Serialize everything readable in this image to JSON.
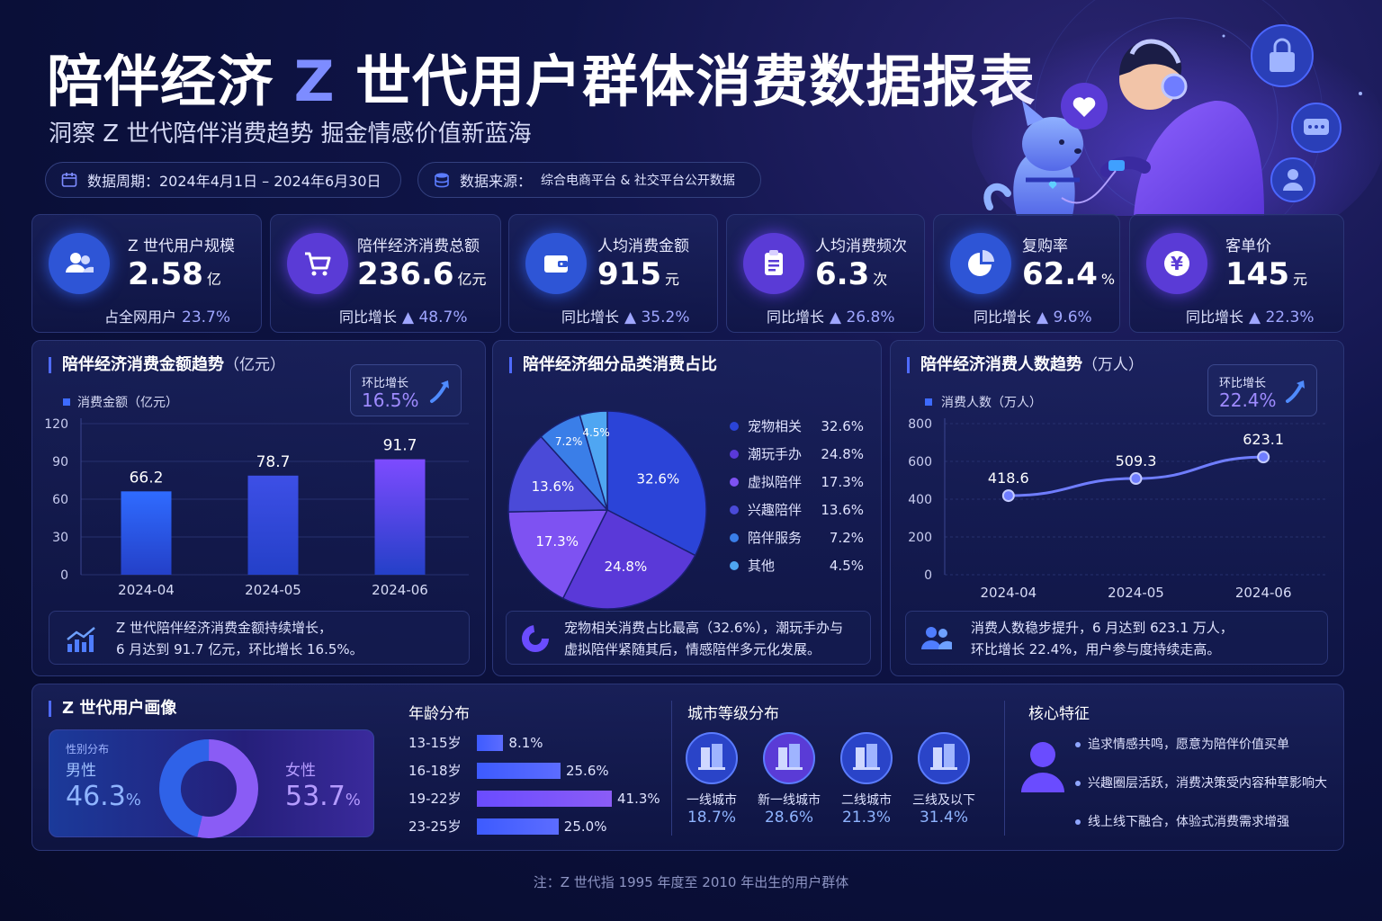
{
  "header": {
    "title_part1": "陪伴经济",
    "title_z": "Z",
    "title_part2": "世代用户群体消费数据报表",
    "subtitle": "洞察 Z 世代陪伴消费趋势   掘金情感价值新蓝海",
    "period": "数据周期：2024年4月1日 – 2024年6月30日",
    "source_label": "数据来源：",
    "source_value": "综合电商平台 & 社交平台公开数据"
  },
  "kpis": [
    {
      "label": "Z 世代用户规模",
      "value": "2.58",
      "unit": "亿",
      "sub_label": "占全网用户",
      "sub_value": "23.7%",
      "icon": "users-icon",
      "color": "#2e55d6"
    },
    {
      "label": "陪伴经济消费总额",
      "value": "236.6",
      "unit": "亿元",
      "sub_label": "同比增长",
      "sub_value": "▲ 48.7%",
      "icon": "cart-icon",
      "color": "#5a3bd6"
    },
    {
      "label": "人均消费金额",
      "value": "915",
      "unit": "元",
      "sub_label": "同比增长",
      "sub_value": "▲ 35.2%",
      "icon": "wallet-icon",
      "color": "#2e55d6"
    },
    {
      "label": "人均消费频次",
      "value": "6.3",
      "unit": "次",
      "sub_label": "同比增长",
      "sub_value": "▲ 26.8%",
      "icon": "clipboard-icon",
      "color": "#5a3bd6"
    },
    {
      "label": "复购率",
      "value": "62.4",
      "unit": "%",
      "sub_label": "同比增长",
      "sub_value": "▲ 9.6%",
      "icon": "pie-icon",
      "color": "#2e55d6"
    },
    {
      "label": "客单价",
      "value": "145",
      "unit": "元",
      "sub_label": "同比增长",
      "sub_value": "▲ 22.3%",
      "icon": "yuan-icon",
      "color": "#5a3bd6"
    }
  ],
  "panels": {
    "amount": {
      "title": "陪伴经济消费金额趋势",
      "title_unit": "（亿元）",
      "legend": "消费金额（亿元）",
      "badge_label": "环比增长",
      "badge_value": "16.5%",
      "note_line1": "Z 世代陪伴经济消费金额持续增长，",
      "note_line2": "6 月达到 91.7 亿元，环比增长 16.5%。"
    },
    "category": {
      "title": "陪伴经济细分品类消费占比",
      "note_line1": "宠物相关消费占比最高（32.6%），潮玩手办与",
      "note_line2": "虚拟陪伴紧随其后，情感陪伴多元化发展。"
    },
    "users": {
      "title": "陪伴经济消费人数趋势",
      "title_unit": "（万人）",
      "legend": "消费人数（万人）",
      "badge_label": "环比增长",
      "badge_value": "22.4%",
      "note_line1": "消费人数稳步提升，6 月达到 623.1 万人，",
      "note_line2": "环比增长 22.4%，用户参与度持续走高。"
    }
  },
  "chart_data": [
    {
      "type": "bar",
      "categories": [
        "2024-04",
        "2024-05",
        "2024-06"
      ],
      "values": [
        66.2,
        78.7,
        91.7
      ],
      "ylim": [
        0,
        120
      ],
      "yticks": [
        0,
        30,
        60,
        90,
        120
      ],
      "series": [
        {
          "name": "消费金额（亿元）",
          "values": [
            66.2,
            78.7,
            91.7
          ]
        }
      ],
      "colors": [
        "#2f6bff",
        "#3d4fe6",
        "#7d4bff"
      ]
    },
    {
      "type": "pie",
      "labels": [
        "宠物相关",
        "潮玩手办",
        "虚拟陪伴",
        "兴趣陪伴",
        "陪伴服务",
        "其他"
      ],
      "values": [
        32.6,
        24.8,
        17.3,
        13.6,
        7.2,
        4.5
      ],
      "value_labels": [
        "32.6%",
        "24.8%",
        "17.3%",
        "13.6%",
        "7.2%",
        "4.5%"
      ],
      "colors": [
        "#2b44d8",
        "#5a39d8",
        "#7e52f2",
        "#4a4ad8",
        "#3a7ee8",
        "#4fa6f2"
      ]
    },
    {
      "type": "line",
      "categories": [
        "2024-04",
        "2024-05",
        "2024-06"
      ],
      "values": [
        418.6,
        509.3,
        623.1
      ],
      "ylim": [
        0,
        800
      ],
      "yticks": [
        0,
        200,
        400,
        600,
        800
      ],
      "series": [
        {
          "name": "消费人数（万人）",
          "values": [
            418.6,
            509.3,
            623.1
          ]
        }
      ],
      "color": "#6f7dff"
    }
  ],
  "profile": {
    "title": "Z 世代用户画像",
    "gender_title": "性别分布",
    "male_label": "男性",
    "male_value": "46.3",
    "female_label": "女性",
    "female_value": "53.7",
    "percent": "%",
    "male_share": 46.3,
    "female_share": 53.7,
    "age_title": "年龄分布",
    "ages": [
      {
        "label": "13-15岁",
        "value": 8.1,
        "text": "8.1%"
      },
      {
        "label": "16-18岁",
        "value": 25.6,
        "text": "25.6%"
      },
      {
        "label": "19-22岁",
        "value": 41.3,
        "text": "41.3%"
      },
      {
        "label": "23-25岁",
        "value": 25.0,
        "text": "25.0%"
      }
    ],
    "city_title": "城市等级分布",
    "cities": [
      {
        "label": "一线城市",
        "value": "18.7%"
      },
      {
        "label": "新一线城市",
        "value": "28.6%"
      },
      {
        "label": "二线城市",
        "value": "21.3%"
      },
      {
        "label": "三线及以下",
        "value": "31.4%"
      }
    ],
    "traits_title": "核心特征",
    "traits": [
      "追求情感共鸣，愿意为陪伴价值买单",
      "兴趣圈层活跃，消费决策受内容种草影响大",
      "线上线下融合，体验式消费需求增强"
    ]
  },
  "footnote": "注：Z 世代指 1995 年度至 2010 年出生的用户群体"
}
